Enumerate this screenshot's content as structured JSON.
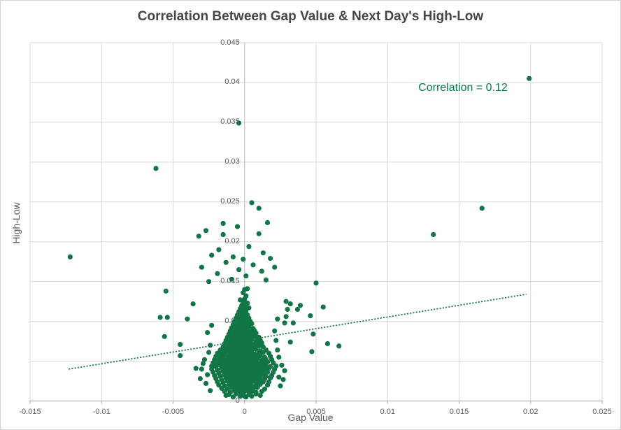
{
  "chart_data": {
    "type": "scatter",
    "title": "Correlation Between Gap Value & Next Day's High-Low",
    "xlabel": "Gap Value",
    "ylabel": "High-Low",
    "annotation": "Correlation = 0.12",
    "correlation": 0.12,
    "xlim": [
      -0.015,
      0.025
    ],
    "ylim": [
      0,
      0.045
    ],
    "grid": true,
    "legend": "none",
    "x_ticks": [
      "-0.015",
      "-0.01",
      "-0.005",
      "0",
      "0.005",
      "0.01",
      "0.015",
      "0.02",
      "0.025"
    ],
    "y_ticks": [
      "0",
      "0.005",
      "0.01",
      "0.015",
      "0.02",
      "0.025",
      "0.03",
      "0.035",
      "0.04",
      "0.045"
    ],
    "trendline": {
      "style": "dotted",
      "x1": -0.0123,
      "y1": 0.004,
      "x2": 0.0197,
      "y2": 0.0134
    },
    "points_scale": 0.0001,
    "points_e4": [
      [
        -122,
        181
      ],
      [
        -62,
        292
      ],
      [
        -4,
        349
      ],
      [
        199,
        405
      ],
      [
        166,
        242
      ],
      [
        132,
        209
      ],
      [
        50,
        148
      ],
      [
        -25,
        150
      ],
      [
        15,
        152
      ],
      [
        1,
        157
      ],
      [
        -9,
        153
      ],
      [
        -19,
        160
      ],
      [
        -4,
        165
      ],
      [
        12,
        163
      ],
      [
        21,
        168
      ],
      [
        -30,
        168
      ],
      [
        6,
        171
      ],
      [
        -13,
        174
      ],
      [
        18,
        179
      ],
      [
        -1,
        178
      ],
      [
        -8,
        181
      ],
      [
        13,
        186
      ],
      [
        -23,
        183
      ],
      [
        3,
        194
      ],
      [
        -18,
        190
      ],
      [
        10,
        210
      ],
      [
        -15,
        209
      ],
      [
        -32,
        207
      ],
      [
        -27,
        214
      ],
      [
        16,
        224
      ],
      [
        -5,
        219
      ],
      [
        -15,
        223
      ],
      [
        10,
        242
      ],
      [
        5,
        249
      ],
      [
        -55,
        138
      ],
      [
        -59,
        105
      ],
      [
        -54,
        105
      ],
      [
        -56,
        81
      ],
      [
        -45,
        71
      ],
      [
        -45,
        57
      ],
      [
        -40,
        103
      ],
      [
        -36,
        122
      ],
      [
        29,
        125
      ],
      [
        32,
        122
      ],
      [
        39,
        120
      ],
      [
        37,
        115
      ],
      [
        30,
        115
      ],
      [
        29,
        106
      ],
      [
        28,
        98
      ],
      [
        46,
        107
      ],
      [
        55,
        118
      ],
      [
        34,
        98
      ],
      [
        48,
        84
      ],
      [
        58,
        72
      ],
      [
        66,
        69
      ],
      [
        32,
        74
      ],
      [
        47,
        62
      ],
      [
        -34,
        41
      ],
      [
        -30,
        40
      ],
      [
        -28,
        52
      ],
      [
        -26,
        33
      ],
      [
        -27,
        22
      ],
      [
        -25,
        61
      ],
      [
        -24,
        13
      ],
      [
        -29,
        47
      ],
      [
        -31,
        28
      ],
      [
        -24,
        70
      ],
      [
        -26,
        86
      ],
      [
        -23,
        95
      ],
      [
        24,
        30
      ],
      [
        26,
        45
      ],
      [
        23,
        64
      ],
      [
        25,
        19
      ],
      [
        28,
        38
      ],
      [
        22,
        76
      ],
      [
        24,
        55
      ],
      [
        27,
        27
      ],
      [
        21,
        88
      ],
      [
        23,
        103
      ],
      [
        -8,
        5
      ],
      [
        -3,
        6
      ],
      [
        1,
        5
      ],
      [
        5,
        6
      ],
      [
        -13,
        7
      ],
      [
        -11,
        8
      ],
      [
        -6,
        9
      ],
      [
        -2,
        8
      ],
      [
        0,
        6
      ],
      [
        3,
        8
      ],
      [
        8,
        9
      ],
      [
        11,
        7
      ],
      [
        -14,
        12
      ],
      [
        -10,
        11
      ],
      [
        -7,
        13
      ],
      [
        -4,
        12
      ],
      [
        -2,
        11
      ],
      [
        0,
        12
      ],
      [
        2,
        13
      ],
      [
        5,
        12
      ],
      [
        8,
        11
      ],
      [
        12,
        12
      ],
      [
        -16,
        16
      ],
      [
        -12,
        15
      ],
      [
        -9,
        17
      ],
      [
        -6,
        16
      ],
      [
        -4,
        15
      ],
      [
        -2,
        16
      ],
      [
        0,
        17
      ],
      [
        1,
        15
      ],
      [
        3,
        16
      ],
      [
        6,
        16
      ],
      [
        9,
        17
      ],
      [
        14,
        15
      ],
      [
        -18,
        20
      ],
      [
        -14,
        19
      ],
      [
        -11,
        21
      ],
      [
        -8,
        20
      ],
      [
        -6,
        19
      ],
      [
        -4,
        20
      ],
      [
        -2,
        21
      ],
      [
        -1,
        19
      ],
      [
        1,
        20
      ],
      [
        3,
        21
      ],
      [
        5,
        19
      ],
      [
        8,
        20
      ],
      [
        11,
        21
      ],
      [
        16,
        20
      ],
      [
        -19,
        24
      ],
      [
        -15,
        23
      ],
      [
        -12,
        25
      ],
      [
        -9,
        24
      ],
      [
        -7,
        23
      ],
      [
        -5,
        24
      ],
      [
        -3,
        25
      ],
      [
        -2,
        23
      ],
      [
        0,
        24
      ],
      [
        1,
        25
      ],
      [
        3,
        23
      ],
      [
        5,
        24
      ],
      [
        7,
        25
      ],
      [
        10,
        23
      ],
      [
        13,
        24
      ],
      [
        17,
        24
      ],
      [
        -20,
        28
      ],
      [
        -16,
        27
      ],
      [
        -13,
        29
      ],
      [
        -10,
        28
      ],
      [
        -8,
        27
      ],
      [
        -6,
        28
      ],
      [
        -5,
        29
      ],
      [
        -3,
        27
      ],
      [
        -1,
        28
      ],
      [
        0,
        29
      ],
      [
        2,
        27
      ],
      [
        4,
        28
      ],
      [
        6,
        29
      ],
      [
        8,
        27
      ],
      [
        11,
        28
      ],
      [
        14,
        28
      ],
      [
        18,
        29
      ],
      [
        -21,
        32
      ],
      [
        -17,
        31
      ],
      [
        -14,
        33
      ],
      [
        -11,
        32
      ],
      [
        -9,
        31
      ],
      [
        -7,
        32
      ],
      [
        -5,
        33
      ],
      [
        -4,
        31
      ],
      [
        -2,
        32
      ],
      [
        -1,
        33
      ],
      [
        1,
        31
      ],
      [
        2,
        32
      ],
      [
        4,
        33
      ],
      [
        6,
        31
      ],
      [
        9,
        32
      ],
      [
        12,
        33
      ],
      [
        15,
        31
      ],
      [
        19,
        32
      ],
      [
        -22,
        36
      ],
      [
        -18,
        35
      ],
      [
        -15,
        37
      ],
      [
        -12,
        36
      ],
      [
        -10,
        35
      ],
      [
        -8,
        36
      ],
      [
        -6,
        37
      ],
      [
        -4,
        35
      ],
      [
        -3,
        36
      ],
      [
        -1,
        37
      ],
      [
        0,
        35
      ],
      [
        2,
        36
      ],
      [
        3,
        37
      ],
      [
        5,
        35
      ],
      [
        7,
        36
      ],
      [
        10,
        37
      ],
      [
        13,
        35
      ],
      [
        16,
        36
      ],
      [
        20,
        36
      ],
      [
        -23,
        40
      ],
      [
        -19,
        39
      ],
      [
        -16,
        41
      ],
      [
        -13,
        40
      ],
      [
        -11,
        39
      ],
      [
        -9,
        40
      ],
      [
        -7,
        41
      ],
      [
        -5,
        39
      ],
      [
        -4,
        40
      ],
      [
        -2,
        41
      ],
      [
        -1,
        39
      ],
      [
        1,
        40
      ],
      [
        2,
        41
      ],
      [
        4,
        39
      ],
      [
        6,
        40
      ],
      [
        8,
        41
      ],
      [
        11,
        39
      ],
      [
        14,
        40
      ],
      [
        17,
        41
      ],
      [
        21,
        40
      ],
      [
        -23,
        44
      ],
      [
        -20,
        43
      ],
      [
        -17,
        45
      ],
      [
        -14,
        44
      ],
      [
        -12,
        43
      ],
      [
        -10,
        44
      ],
      [
        -8,
        45
      ],
      [
        -6,
        43
      ],
      [
        -5,
        44
      ],
      [
        -3,
        45
      ],
      [
        -2,
        43
      ],
      [
        0,
        44
      ],
      [
        1,
        45
      ],
      [
        3,
        43
      ],
      [
        5,
        44
      ],
      [
        7,
        45
      ],
      [
        9,
        43
      ],
      [
        12,
        44
      ],
      [
        15,
        45
      ],
      [
        18,
        43
      ],
      [
        22,
        44
      ],
      [
        -22,
        48
      ],
      [
        -19,
        47
      ],
      [
        -16,
        49
      ],
      [
        -13,
        48
      ],
      [
        -11,
        47
      ],
      [
        -9,
        48
      ],
      [
        -7,
        49
      ],
      [
        -6,
        47
      ],
      [
        -4,
        48
      ],
      [
        -3,
        49
      ],
      [
        -1,
        47
      ],
      [
        0,
        48
      ],
      [
        2,
        49
      ],
      [
        3,
        47
      ],
      [
        5,
        48
      ],
      [
        8,
        49
      ],
      [
        10,
        47
      ],
      [
        13,
        48
      ],
      [
        16,
        49
      ],
      [
        20,
        48
      ],
      [
        -21,
        52
      ],
      [
        -18,
        51
      ],
      [
        -15,
        53
      ],
      [
        -12,
        52
      ],
      [
        -10,
        51
      ],
      [
        -8,
        52
      ],
      [
        -6,
        53
      ],
      [
        -5,
        51
      ],
      [
        -3,
        52
      ],
      [
        -2,
        53
      ],
      [
        0,
        51
      ],
      [
        1,
        52
      ],
      [
        3,
        53
      ],
      [
        4,
        51
      ],
      [
        6,
        52
      ],
      [
        9,
        53
      ],
      [
        12,
        51
      ],
      [
        15,
        52
      ],
      [
        19,
        52
      ],
      [
        -20,
        56
      ],
      [
        -17,
        55
      ],
      [
        -14,
        57
      ],
      [
        -11,
        56
      ],
      [
        -9,
        55
      ],
      [
        -7,
        56
      ],
      [
        -5,
        57
      ],
      [
        -4,
        55
      ],
      [
        -2,
        56
      ],
      [
        -1,
        57
      ],
      [
        1,
        55
      ],
      [
        2,
        56
      ],
      [
        4,
        57
      ],
      [
        6,
        55
      ],
      [
        8,
        56
      ],
      [
        11,
        57
      ],
      [
        14,
        55
      ],
      [
        18,
        56
      ],
      [
        -19,
        60
      ],
      [
        -16,
        59
      ],
      [
        -13,
        61
      ],
      [
        -10,
        60
      ],
      [
        -8,
        59
      ],
      [
        -6,
        60
      ],
      [
        -4,
        61
      ],
      [
        -3,
        59
      ],
      [
        -1,
        60
      ],
      [
        0,
        61
      ],
      [
        2,
        59
      ],
      [
        3,
        60
      ],
      [
        5,
        61
      ],
      [
        7,
        59
      ],
      [
        10,
        60
      ],
      [
        13,
        61
      ],
      [
        17,
        60
      ],
      [
        -17,
        64
      ],
      [
        -14,
        63
      ],
      [
        -11,
        65
      ],
      [
        -9,
        64
      ],
      [
        -7,
        63
      ],
      [
        -5,
        64
      ],
      [
        -3,
        65
      ],
      [
        -2,
        63
      ],
      [
        0,
        64
      ],
      [
        1,
        65
      ],
      [
        3,
        63
      ],
      [
        5,
        64
      ],
      [
        8,
        65
      ],
      [
        11,
        63
      ],
      [
        15,
        64
      ],
      [
        -15,
        68
      ],
      [
        -12,
        67
      ],
      [
        -10,
        69
      ],
      [
        -8,
        68
      ],
      [
        -6,
        67
      ],
      [
        -4,
        68
      ],
      [
        -2,
        69
      ],
      [
        -1,
        67
      ],
      [
        1,
        68
      ],
      [
        2,
        69
      ],
      [
        4,
        67
      ],
      [
        7,
        68
      ],
      [
        10,
        69
      ],
      [
        13,
        68
      ],
      [
        -14,
        72
      ],
      [
        -11,
        71
      ],
      [
        -9,
        73
      ],
      [
        -7,
        72
      ],
      [
        -5,
        71
      ],
      [
        -3,
        72
      ],
      [
        -1,
        73
      ],
      [
        0,
        71
      ],
      [
        2,
        72
      ],
      [
        4,
        73
      ],
      [
        6,
        71
      ],
      [
        9,
        72
      ],
      [
        12,
        73
      ],
      [
        -13,
        76
      ],
      [
        -10,
        75
      ],
      [
        -8,
        77
      ],
      [
        -6,
        76
      ],
      [
        -4,
        75
      ],
      [
        -2,
        76
      ],
      [
        0,
        77
      ],
      [
        1,
        75
      ],
      [
        3,
        76
      ],
      [
        5,
        77
      ],
      [
        8,
        75
      ],
      [
        11,
        76
      ],
      [
        -12,
        80
      ],
      [
        -9,
        79
      ],
      [
        -7,
        81
      ],
      [
        -5,
        80
      ],
      [
        -3,
        79
      ],
      [
        -1,
        80
      ],
      [
        0,
        81
      ],
      [
        2,
        79
      ],
      [
        4,
        80
      ],
      [
        7,
        81
      ],
      [
        10,
        80
      ],
      [
        -11,
        84
      ],
      [
        -8,
        83
      ],
      [
        -6,
        85
      ],
      [
        -4,
        84
      ],
      [
        -2,
        83
      ],
      [
        -1,
        84
      ],
      [
        1,
        85
      ],
      [
        3,
        83
      ],
      [
        5,
        84
      ],
      [
        8,
        85
      ],
      [
        -10,
        88
      ],
      [
        -7,
        87
      ],
      [
        -5,
        89
      ],
      [
        -3,
        88
      ],
      [
        -1,
        87
      ],
      [
        0,
        88
      ],
      [
        2,
        89
      ],
      [
        4,
        87
      ],
      [
        7,
        88
      ],
      [
        -9,
        92
      ],
      [
        -6,
        91
      ],
      [
        -4,
        93
      ],
      [
        -2,
        92
      ],
      [
        0,
        91
      ],
      [
        1,
        92
      ],
      [
        3,
        93
      ],
      [
        6,
        91
      ],
      [
        -8,
        96
      ],
      [
        -5,
        95
      ],
      [
        -3,
        97
      ],
      [
        -1,
        96
      ],
      [
        1,
        95
      ],
      [
        2,
        96
      ],
      [
        5,
        97
      ],
      [
        -7,
        100
      ],
      [
        -4,
        99
      ],
      [
        -2,
        101
      ],
      [
        0,
        100
      ],
      [
        2,
        99
      ],
      [
        4,
        100
      ],
      [
        -6,
        104
      ],
      [
        -3,
        103
      ],
      [
        -1,
        105
      ],
      [
        1,
        103
      ],
      [
        3,
        104
      ],
      [
        -5,
        108
      ],
      [
        -2,
        107
      ],
      [
        0,
        109
      ],
      [
        2,
        108
      ],
      [
        -4,
        112
      ],
      [
        -1,
        111
      ],
      [
        1,
        113
      ],
      [
        -3,
        116
      ],
      [
        0,
        115
      ],
      [
        3,
        117
      ],
      [
        -2,
        120
      ],
      [
        1,
        119
      ],
      [
        -1,
        124
      ],
      [
        2,
        123
      ],
      [
        0,
        128
      ],
      [
        -3,
        127
      ],
      [
        1,
        132
      ],
      [
        -1,
        136
      ],
      [
        0,
        140
      ],
      [
        2,
        141
      ]
    ]
  },
  "colors": {
    "point_green": "#127546",
    "trendline_green": "#127546",
    "annotation_green": "#0a7d44",
    "title_gray": "#464646",
    "tick_label_gray": "#595959",
    "gridline_gray": "#d9d9d9",
    "axis_gray": "#a6a6a6",
    "zero_line_gray": "#c2c2c2",
    "frame_border_gray": "#d6d6d6"
  }
}
